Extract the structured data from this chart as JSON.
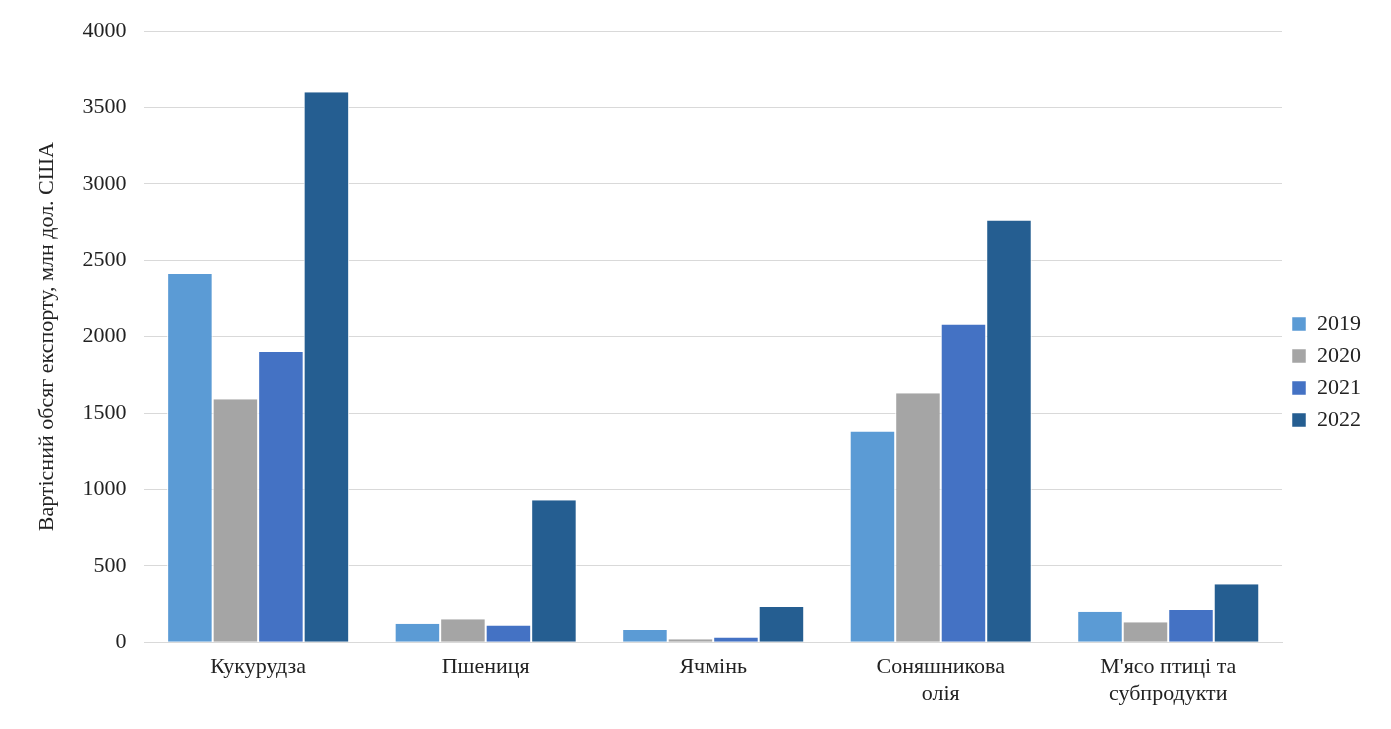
{
  "chart_data": {
    "type": "bar",
    "ylabel": "Вартісний обсяг експорту, млн дол. США",
    "categories": [
      "Кукурудза",
      "Пшениця",
      "Ячмінь",
      "Соняшникова олія",
      "М'ясо птиці та субпродукти"
    ],
    "series": [
      {
        "name": "2019",
        "color": "#5b9bd5",
        "values": [
          2410,
          120,
          80,
          1380,
          200
        ]
      },
      {
        "name": "2020",
        "color": "#a5a5a5",
        "values": [
          1590,
          150,
          20,
          1630,
          130
        ]
      },
      {
        "name": "2021",
        "color": "#4472c4",
        "values": [
          1900,
          110,
          30,
          2080,
          210
        ]
      },
      {
        "name": "2022",
        "color": "#255e91",
        "values": [
          3600,
          930,
          230,
          2760,
          380
        ]
      }
    ],
    "ylim": [
      0,
      4000
    ],
    "yticks": [
      0,
      500,
      1000,
      1500,
      2000,
      2500,
      3000,
      3500,
      4000
    ],
    "grid": "y",
    "legend": "right"
  }
}
